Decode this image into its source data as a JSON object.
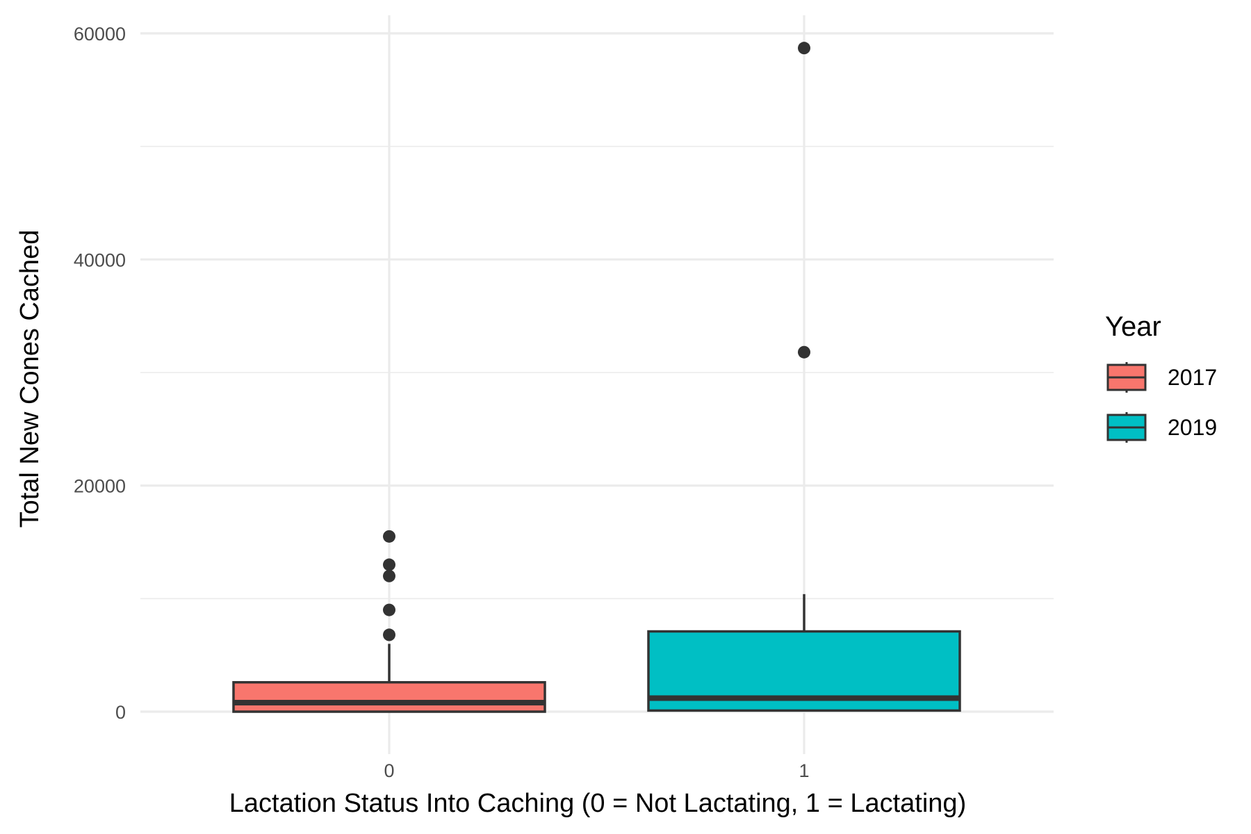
{
  "chart_data": {
    "type": "box",
    "title": "",
    "xlabel": "Lactation Status Into Caching (0 = Not Lactating, 1 = Lactating)",
    "ylabel": "Total New Cones Cached",
    "ylim": [
      -2500,
      62000
    ],
    "yticks": [
      0,
      20000,
      40000,
      60000
    ],
    "categories": [
      "0",
      "1"
    ],
    "grid": true,
    "legend": {
      "title": "Year",
      "position": "right"
    },
    "series": [
      {
        "name": "2017",
        "color": "#F8766D",
        "category": "0",
        "lower_whisker": 0,
        "q1": 0,
        "median": 800,
        "q3": 2600,
        "upper_whisker": 6000,
        "outliers": [
          6800,
          9000,
          12000,
          13000,
          15500
        ]
      },
      {
        "name": "2019",
        "color": "#00BFC4",
        "category": "1",
        "lower_whisker": 0,
        "q1": 100,
        "median": 1200,
        "q3": 7100,
        "upper_whisker": 10400,
        "outliers": [
          31800,
          58700
        ]
      }
    ]
  }
}
